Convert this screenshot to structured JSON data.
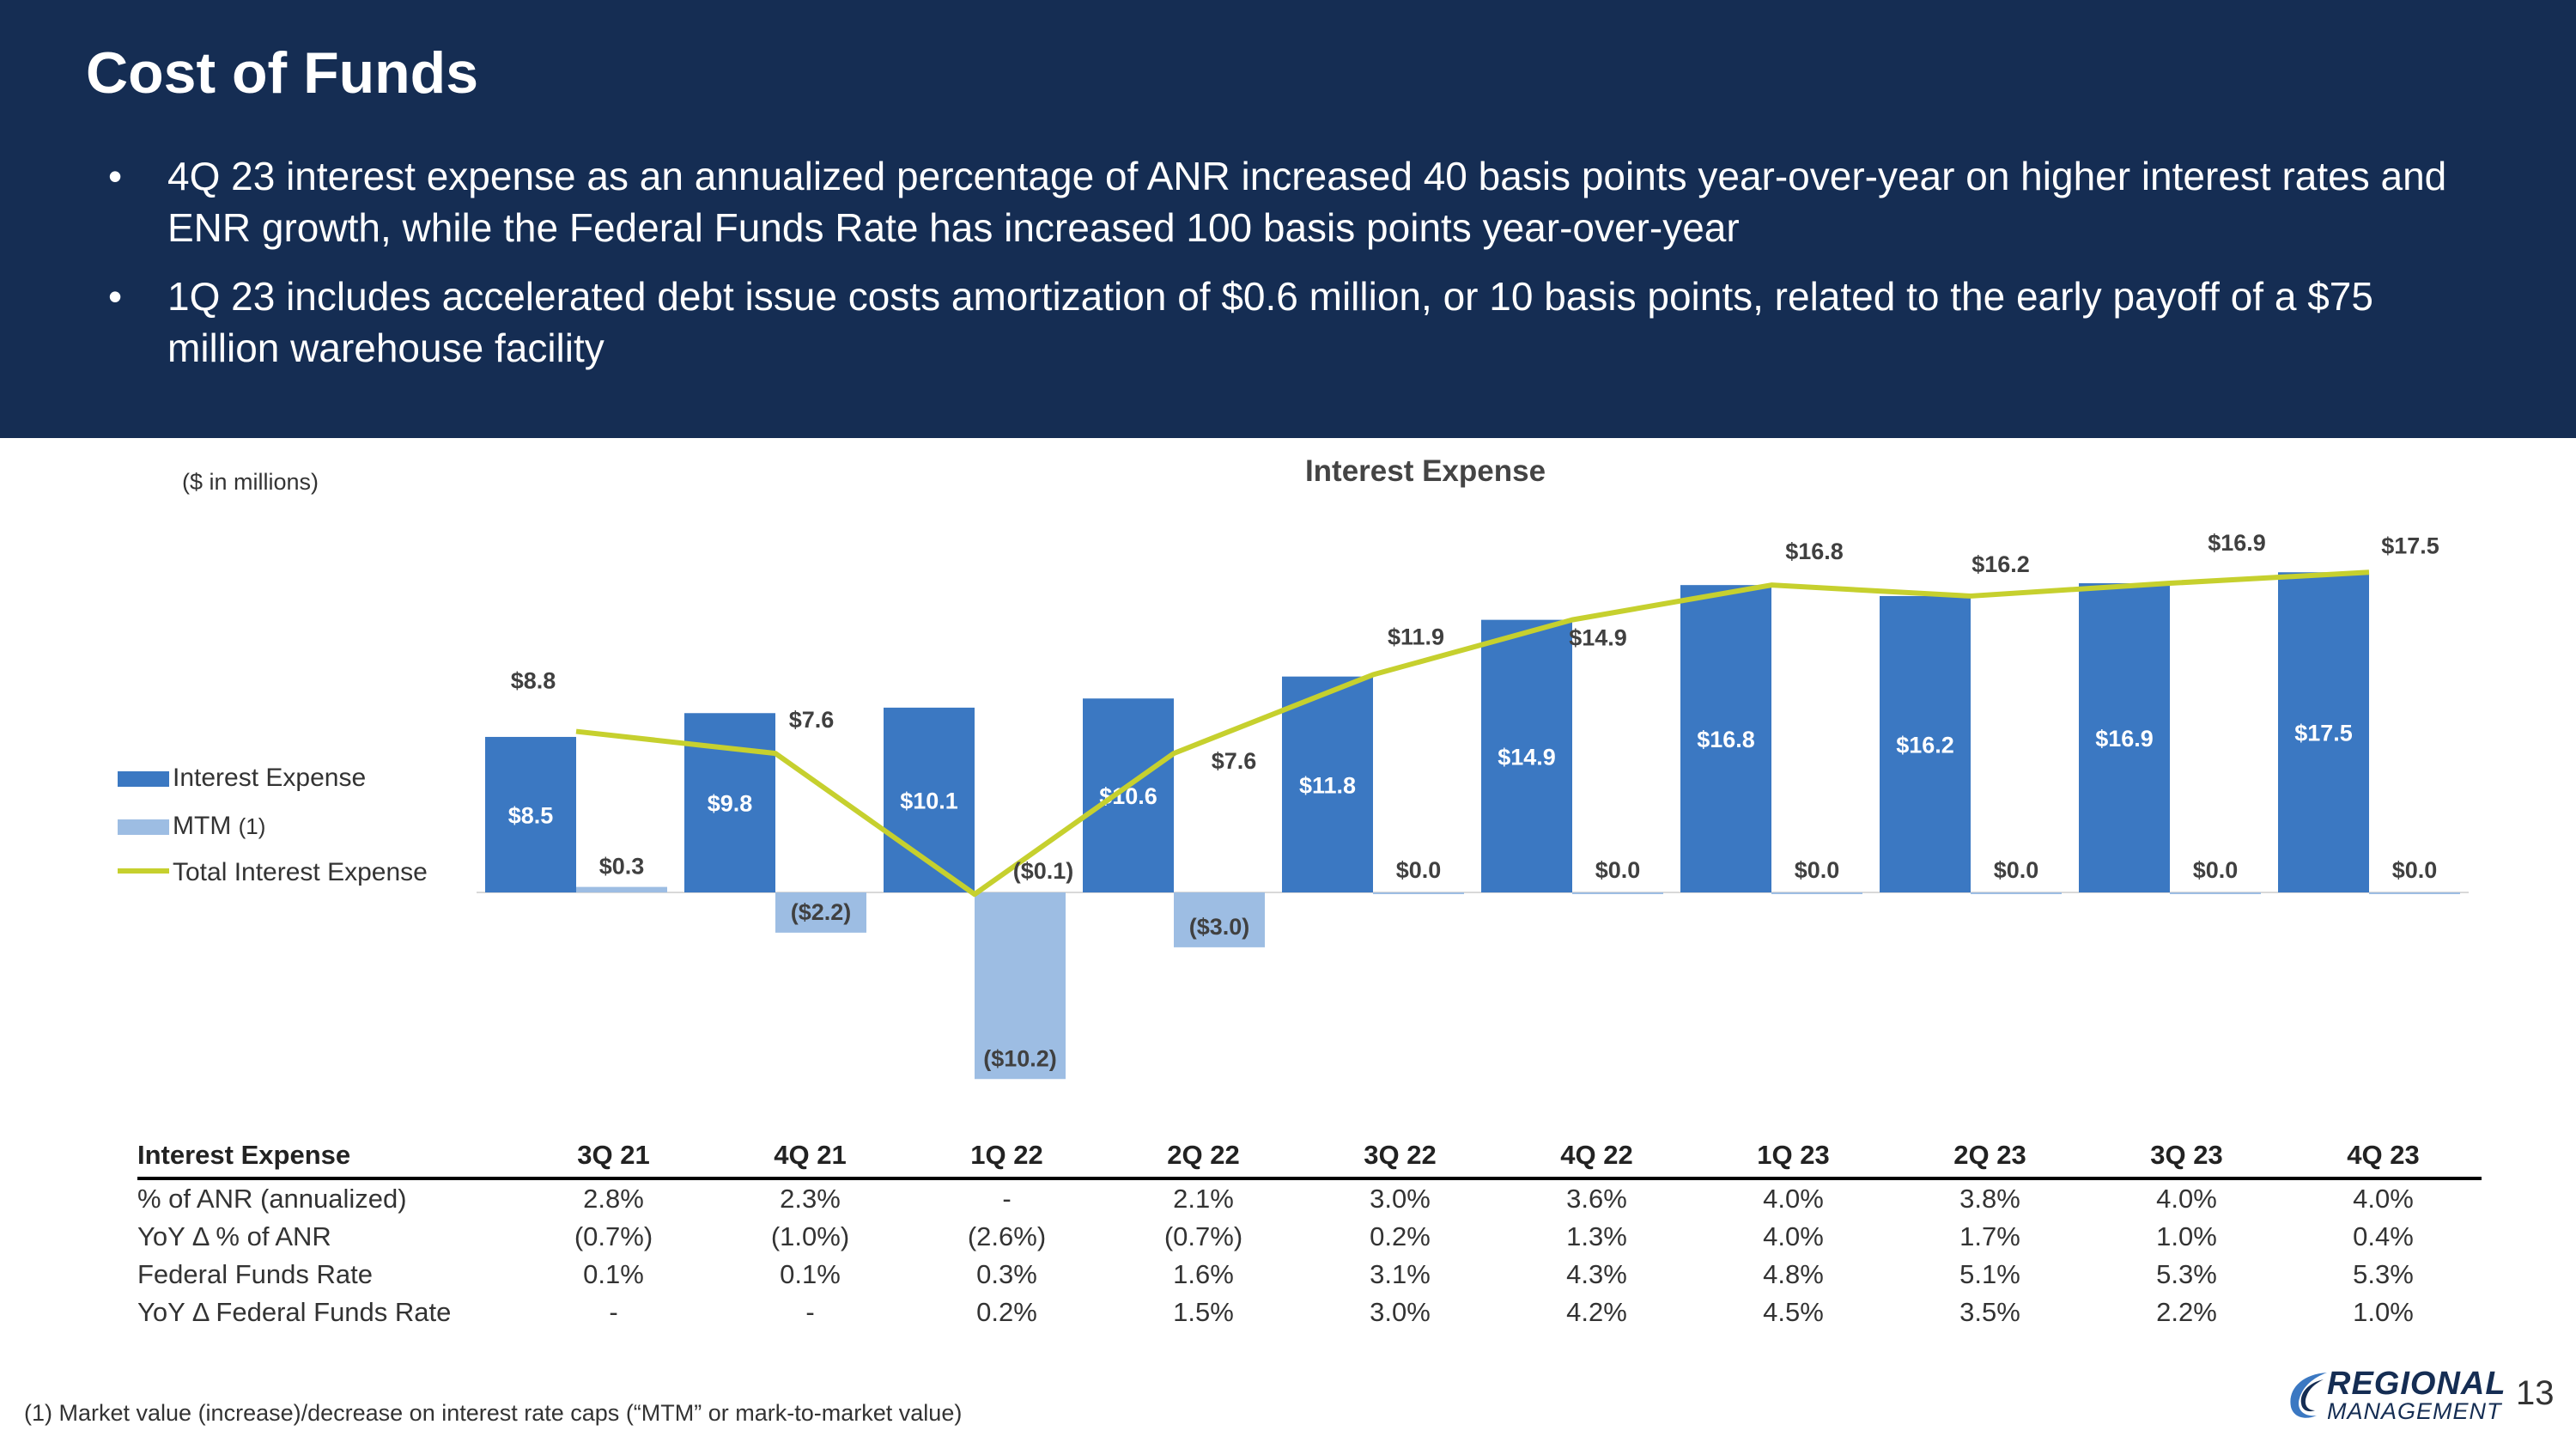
{
  "slide": {
    "title": "Cost of Funds",
    "bullets": [
      "4Q 23 interest expense as an annualized percentage of ANR increased 40 basis points year-over-year on higher interest rates and ENR growth, while the Federal Funds Rate has increased 100 basis points year-over-year",
      "1Q 23 includes accelerated debt issue costs amortization of $0.6 million, or 10 basis points, related to the early payoff of a $75 million warehouse facility"
    ],
    "units_note": "($ in millions)",
    "footnote": "(1) Market value (increase)/decrease on interest rate caps (“MTM” or mark-to-market value)",
    "page_number": "13",
    "logo_line1": "REGIONAL",
    "logo_line2": "MANAGEMENT"
  },
  "colors": {
    "header_bg": "#152d53",
    "interest_bar": "#3b78c2",
    "mtm_bar": "#9dbde3",
    "total_line": "#c6d02e"
  },
  "chart_data": {
    "type": "bar",
    "title": "Interest Expense",
    "categories": [
      "3Q 21",
      "4Q 21",
      "1Q 22",
      "2Q 22",
      "3Q 22",
      "4Q 22",
      "1Q 23",
      "2Q 23",
      "3Q 23",
      "4Q 23"
    ],
    "series": [
      {
        "name": "Interest Expense",
        "type": "bar",
        "values": [
          8.5,
          9.8,
          10.1,
          10.6,
          11.8,
          14.9,
          16.8,
          16.2,
          16.9,
          17.5
        ],
        "labels": [
          "$8.5",
          "$9.8",
          "$10.1",
          "$10.6",
          "$11.8",
          "$14.9",
          "$16.8",
          "$16.2",
          "$16.9",
          "$17.5"
        ]
      },
      {
        "name": "MTM",
        "name_suffix": "(1)",
        "type": "bar",
        "values": [
          0.3,
          -2.2,
          -10.2,
          -3.0,
          0.0,
          0.0,
          0.0,
          0.0,
          0.0,
          0.0
        ],
        "labels": [
          "$0.3",
          "($2.2)",
          "($10.2)",
          "($3.0)",
          "$0.0",
          "$0.0",
          "$0.0",
          "$0.0",
          "$0.0",
          "$0.0"
        ]
      },
      {
        "name": "Total Interest Expense",
        "type": "line",
        "values": [
          8.8,
          7.6,
          -0.1,
          7.6,
          11.9,
          14.9,
          16.8,
          16.2,
          16.9,
          17.5
        ],
        "labels": [
          "$8.8",
          "$7.6",
          "($0.1)",
          "$7.6",
          "$11.9",
          "$14.9",
          "$16.8",
          "$16.2",
          "$16.9",
          "$17.5"
        ]
      }
    ],
    "ylim": [
      -11,
      19
    ],
    "legend": "left",
    "grid": false,
    "xlabel": "",
    "ylabel": ""
  },
  "table": {
    "headers": [
      "Interest Expense",
      "3Q 21",
      "4Q 21",
      "1Q 22",
      "2Q 22",
      "3Q 22",
      "4Q 22",
      "1Q 23",
      "2Q 23",
      "3Q 23",
      "4Q 23"
    ],
    "rows": [
      [
        "% of ANR (annualized)",
        "2.8%",
        "2.3%",
        "-",
        "2.1%",
        "3.0%",
        "3.6%",
        "4.0%",
        "3.8%",
        "4.0%",
        "4.0%"
      ],
      [
        "YoY Δ % of ANR",
        "(0.7%)",
        "(1.0%)",
        "(2.6%)",
        "(0.7%)",
        "0.2%",
        "1.3%",
        "4.0%",
        "1.7%",
        "1.0%",
        "0.4%"
      ],
      [
        "Federal Funds Rate",
        "0.1%",
        "0.1%",
        "0.3%",
        "1.6%",
        "3.1%",
        "4.3%",
        "4.8%",
        "5.1%",
        "5.3%",
        "5.3%"
      ],
      [
        "YoY Δ Federal Funds Rate",
        "-",
        "-",
        "0.2%",
        "1.5%",
        "3.0%",
        "4.2%",
        "4.5%",
        "3.5%",
        "2.2%",
        "1.0%"
      ]
    ]
  }
}
